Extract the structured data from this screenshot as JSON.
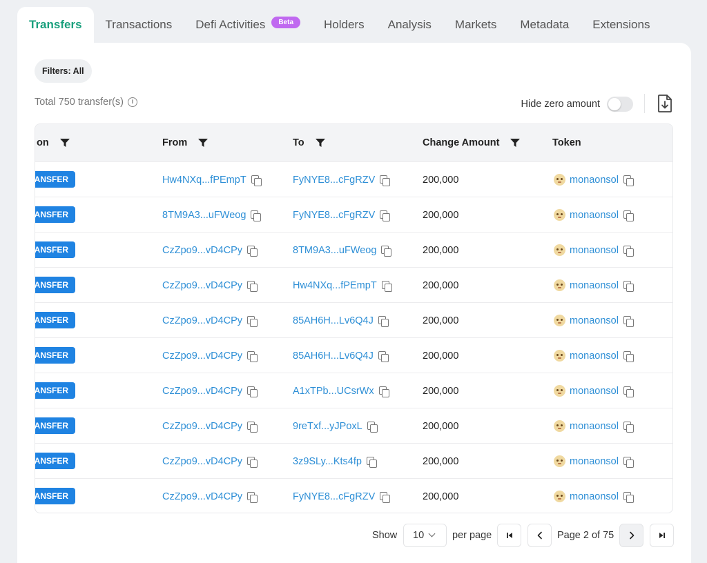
{
  "tabs": [
    {
      "label": "Transfers"
    },
    {
      "label": "Transactions"
    },
    {
      "label": "Defi Activities",
      "badge": "Beta"
    },
    {
      "label": "Holders"
    },
    {
      "label": "Analysis"
    },
    {
      "label": "Markets"
    },
    {
      "label": "Metadata"
    },
    {
      "label": "Extensions"
    }
  ],
  "filters": {
    "label": "Filters: All"
  },
  "summary": {
    "total": "Total 750 transfer(s)",
    "hide_zero_label": "Hide zero amount"
  },
  "table": {
    "headers": {
      "action": "on",
      "from": "From",
      "to": "To",
      "amount": "Change Amount",
      "token": "Token"
    },
    "rows": [
      {
        "action": "ANSFER",
        "from": "Hw4NXq...fPEmpT",
        "to": "FyNYE8...cFgRZV",
        "amount": "200,000",
        "token": "monaonsol"
      },
      {
        "action": "ANSFER",
        "from": "8TM9A3...uFWeog",
        "to": "FyNYE8...cFgRZV",
        "amount": "200,000",
        "token": "monaonsol"
      },
      {
        "action": "ANSFER",
        "from": "CzZpo9...vD4CPy",
        "to": "8TM9A3...uFWeog",
        "amount": "200,000",
        "token": "monaonsol"
      },
      {
        "action": "ANSFER",
        "from": "CzZpo9...vD4CPy",
        "to": "Hw4NXq...fPEmpT",
        "amount": "200,000",
        "token": "monaonsol"
      },
      {
        "action": "ANSFER",
        "from": "CzZpo9...vD4CPy",
        "to": "85AH6H...Lv6Q4J",
        "amount": "200,000",
        "token": "monaonsol"
      },
      {
        "action": "ANSFER",
        "from": "CzZpo9...vD4CPy",
        "to": "85AH6H...Lv6Q4J",
        "amount": "200,000",
        "token": "monaonsol"
      },
      {
        "action": "ANSFER",
        "from": "CzZpo9...vD4CPy",
        "to": "A1xTPb...UCsrWx",
        "amount": "200,000",
        "token": "monaonsol"
      },
      {
        "action": "ANSFER",
        "from": "CzZpo9...vD4CPy",
        "to": "9reTxf...yJPoxL",
        "amount": "200,000",
        "token": "monaonsol"
      },
      {
        "action": "ANSFER",
        "from": "CzZpo9...vD4CPy",
        "to": "3z9SLy...Kts4fp",
        "amount": "200,000",
        "token": "monaonsol"
      },
      {
        "action": "ANSFER",
        "from": "CzZpo9...vD4CPy",
        "to": "FyNYE8...cFgRZV",
        "amount": "200,000",
        "token": "monaonsol"
      }
    ]
  },
  "pagination": {
    "show_label": "Show",
    "per_page_value": "10",
    "per_page_label": "per page",
    "page_text": "Page 2 of 75"
  },
  "icons": {
    "filter": "filter-icon",
    "copy": "copy-icon",
    "info": "info-icon",
    "download": "download-icon",
    "token": "token-logo-icon",
    "first": "first-page-icon",
    "prev": "chevron-left-icon",
    "next": "chevron-right-icon",
    "last": "last-page-icon"
  },
  "colors": {
    "active_tab": "#1aa07d",
    "link": "#2e8fd6",
    "action_badge": "#1f83e2",
    "beta_badge": "#c069f0"
  }
}
